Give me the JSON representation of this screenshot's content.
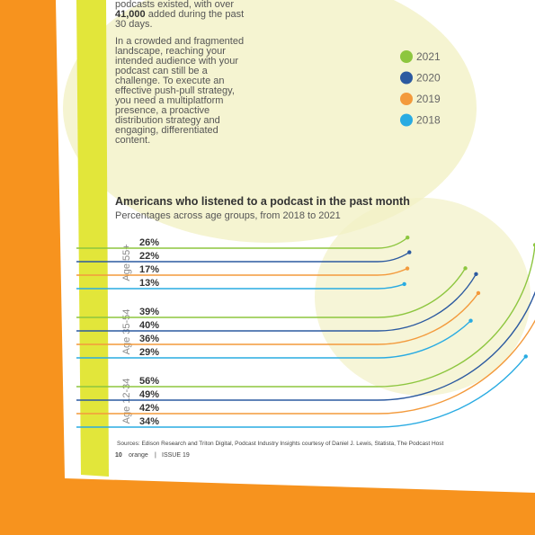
{
  "intro_tail": {
    "before": "podcasts existed, with over",
    "bold": "41,000",
    "after": "added during the past 30 days."
  },
  "paragraph": "In a crowded and fragmented landscape, reaching your intended audience with your podcast can still be a challenge. To execute an effective push-pull strategy, you need a multiplatform presence, a proactive distribution strategy and engaging, differentiated content.",
  "chart_data": {
    "type": "arc-line",
    "title": "Americans who listened to a podcast in the past month",
    "subtitle": "Percentages across age groups, from 2018 to 2021",
    "categories": [
      "Age 55+",
      "Age 35-54",
      "Age 12-34"
    ],
    "series": [
      {
        "name": "2021",
        "color": "#8dc63f",
        "values": [
          26,
          39,
          56
        ],
        "value_labels": [
          "26%",
          "39%",
          "56%"
        ]
      },
      {
        "name": "2020",
        "color": "#2c5aa0",
        "values": [
          22,
          40,
          49
        ],
        "value_labels": [
          "22%",
          "40%",
          "49%"
        ]
      },
      {
        "name": "2019",
        "color": "#f39a3c",
        "values": [
          17,
          36,
          42
        ],
        "value_labels": [
          "17%",
          "36%",
          "42%"
        ]
      },
      {
        "name": "2018",
        "color": "#29abe2",
        "values": [
          13,
          29,
          34
        ],
        "value_labels": [
          "13%",
          "29%",
          "34%"
        ]
      }
    ],
    "source": "Sources: Edison Research and Triton Digital, Podcast Industry Insights courtesy of Daniel J. Lewis, Statista, The Podcast Host"
  },
  "footer": {
    "page": "10",
    "magazine": "orange",
    "issue": "ISSUE 19"
  }
}
